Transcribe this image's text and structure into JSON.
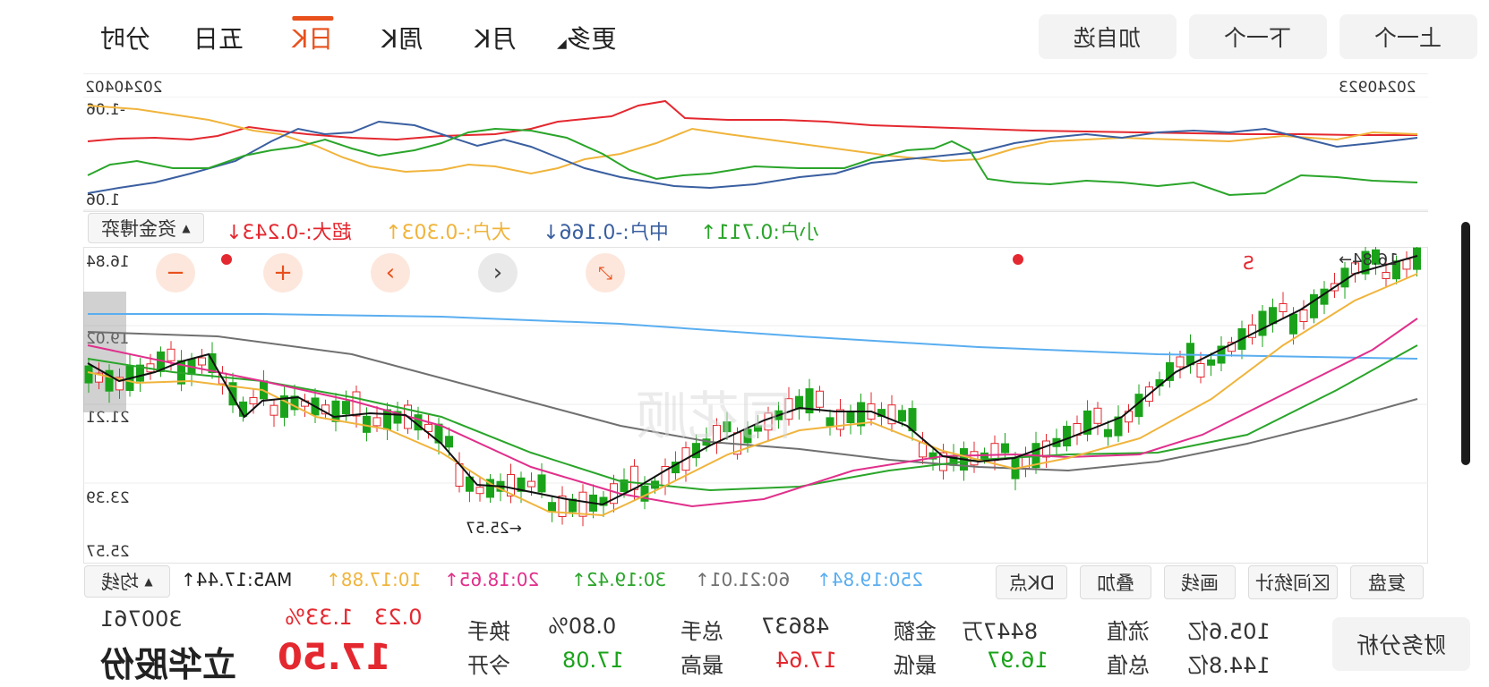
{
  "tabs": [
    "分时",
    "五日",
    "日K",
    "周K",
    "月K",
    "更多"
  ],
  "active_tab": 2,
  "buttons": {
    "add_watch": "加自选",
    "prev": "下一个",
    "next": "上一个"
  },
  "top_panel": {
    "date_start": "20240402",
    "date_end": "20240923",
    "y_top": "-1.06",
    "y_bottom": "1.06",
    "selector": "资金博弈",
    "legend": [
      {
        "label": "超大:-0.243↓",
        "color": "#e4282f"
      },
      {
        "label": "大户:-0.303↑",
        "color": "#f0b43c"
      },
      {
        "label": "中户:-0.166↓",
        "color": "#3a5fa0"
      },
      {
        "label": "小户:0.711↑",
        "color": "#2aa52a"
      }
    ]
  },
  "main_chart": {
    "y_labels": [
      "16.84",
      "19.02",
      "21.21",
      "23.39",
      "25.57"
    ],
    "high_note": "16.84→",
    "low_note": "←25.57",
    "s_mark": "S",
    "watermark": "同花顺"
  },
  "ma_bar": {
    "selector": "均线",
    "items": [
      {
        "label": "MA5:17.44↑",
        "color": "#222222"
      },
      {
        "label": "10:17.88↑",
        "color": "#f0b43c"
      },
      {
        "label": "20:18.65↑",
        "color": "#e0308c"
      },
      {
        "label": "30:19.42↑",
        "color": "#2aa52a"
      },
      {
        "label": "60:21.01↑",
        "color": "#707070"
      },
      {
        "label": "250:19.84↑",
        "color": "#5aaef0"
      }
    ],
    "tools": [
      "DK点",
      "叠加",
      "画线",
      "区间统计",
      "复盘"
    ]
  },
  "stock": {
    "code": "300761",
    "name": "立华股份",
    "price": "17.50",
    "change_pct": "1.33%",
    "change": "0.23",
    "turnover_label": "换手",
    "turnover": "0.80%",
    "total_hand_label": "总手",
    "total_hand": "48637",
    "amount_label": "金额",
    "amount": "8447万",
    "circ_value_label": "流值",
    "circ_value": "105.6亿",
    "open_label": "今开",
    "open": "17.08",
    "high_label": "最高",
    "high": "17.64",
    "low_label": "最低",
    "low": "16.97",
    "total_value_label": "总值",
    "total_value": "144.8亿",
    "analysis_btn": "财务分析"
  },
  "colors": {
    "up": "#e4282f",
    "down": "#1aa31a",
    "accent": "#e8501c"
  }
}
